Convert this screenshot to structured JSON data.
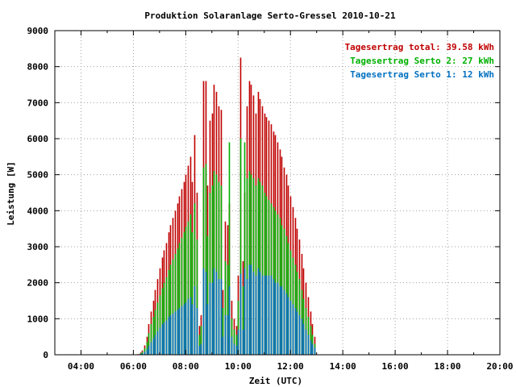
{
  "chart_data": {
    "type": "bar",
    "title": "Produktion Solaranlage Serto-Gressel 2010-10-21",
    "xlabel": "Zeit (UTC)",
    "ylabel": "Leistung [W]",
    "xlim": [
      3,
      20
    ],
    "ylim": [
      0,
      9000
    ],
    "x_ticks": [
      {
        "value": 4,
        "label": "04:00"
      },
      {
        "value": 6,
        "label": "06:00"
      },
      {
        "value": 8,
        "label": "08:00"
      },
      {
        "value": 10,
        "label": "10:00"
      },
      {
        "value": 12,
        "label": "12:00"
      },
      {
        "value": 14,
        "label": "14:00"
      },
      {
        "value": 16,
        "label": "16:00"
      },
      {
        "value": 18,
        "label": "18:00"
      },
      {
        "value": 20,
        "label": "20:00"
      }
    ],
    "y_ticks": [
      {
        "value": 0,
        "label": "0"
      },
      {
        "value": 1000,
        "label": "1000"
      },
      {
        "value": 2000,
        "label": "2000"
      },
      {
        "value": 3000,
        "label": "3000"
      },
      {
        "value": 4000,
        "label": "4000"
      },
      {
        "value": 5000,
        "label": "5000"
      },
      {
        "value": 6000,
        "label": "6000"
      },
      {
        "value": 7000,
        "label": "7000"
      },
      {
        "value": 8000,
        "label": "8000"
      },
      {
        "value": 9000,
        "label": "9000"
      }
    ],
    "grid": true,
    "legend_position": "top-right",
    "sample_interval_hours": 0.0833,
    "start_time_hours": 6.1667,
    "series": [
      {
        "name": "Tagesertrag total",
        "legend": "Tagesertrag total: 39.58 kWh",
        "color": "#c00000",
        "values": [
          20,
          60,
          120,
          260,
          500,
          850,
          1200,
          1500,
          1800,
          2100,
          2400,
          2700,
          2900,
          3100,
          3400,
          3600,
          3800,
          4000,
          4200,
          4400,
          4600,
          4800,
          5000,
          5250,
          5500,
          4800,
          6100,
          4500,
          800,
          1100,
          7600,
          7600,
          4700,
          6500,
          6700,
          7500,
          7300,
          6900,
          6800,
          1800,
          3700,
          3600,
          4200,
          1500,
          1000,
          800,
          2200,
          8250,
          2600,
          4500,
          6900,
          7600,
          7500,
          7200,
          6700,
          7300,
          7100,
          6900,
          6700,
          6600,
          6500,
          6400,
          6200,
          6100,
          5900,
          5700,
          5500,
          5200,
          5000,
          4700,
          4400,
          4100,
          3800,
          3500,
          3200,
          2800,
          2400,
          2000,
          1600,
          1200,
          850,
          500
        ]
      },
      {
        "name": "Tagesertrag Serto 2",
        "legend": "Tagesertrag Serto 2: 27 kWh",
        "color": "#00b000",
        "values": [
          10,
          40,
          80,
          180,
          350,
          600,
          850,
          1050,
          1250,
          1450,
          1650,
          1850,
          2000,
          2150,
          2350,
          2500,
          2650,
          2800,
          2950,
          3100,
          3250,
          3400,
          3550,
          3700,
          3900,
          3400,
          4200,
          3200,
          550,
          800,
          5200,
          5300,
          3300,
          4500,
          4700,
          5100,
          5000,
          4800,
          4700,
          1300,
          2600,
          2500,
          5900,
          1000,
          700,
          550,
          1500,
          6000,
          1900,
          5900,
          4900,
          5100,
          5000,
          4900,
          4700,
          4900,
          4800,
          4700,
          4500,
          4400,
          4300,
          4200,
          4100,
          4000,
          3900,
          3800,
          3600,
          3500,
          3300,
          3100,
          2900,
          2700,
          2500,
          2300,
          2100,
          1800,
          1550,
          1300,
          1050,
          800,
          550,
          300
        ]
      },
      {
        "name": "Tagesertrag Serto 1",
        "legend": "Tagesertrag Serto 1: 12 kWh",
        "color": "#0070c0",
        "values": [
          5,
          20,
          40,
          80,
          150,
          250,
          350,
          450,
          550,
          650,
          750,
          850,
          900,
          950,
          1050,
          1100,
          1150,
          1200,
          1250,
          1300,
          1350,
          1400,
          1450,
          1550,
          1600,
          1400,
          1900,
          1300,
          250,
          300,
          2400,
          2300,
          1400,
          2000,
          2000,
          2400,
          2300,
          2100,
          2100,
          500,
          1100,
          1100,
          1900,
          500,
          300,
          250,
          700,
          2250,
          700,
          2400,
          2100,
          2500,
          2500,
          2300,
          2200,
          2400,
          2300,
          2200,
          2200,
          2200,
          2200,
          2200,
          2100,
          2000,
          2000,
          1900,
          1900,
          1800,
          1700,
          1600,
          1500,
          1400,
          1300,
          1200,
          1100,
          1000,
          850,
          700,
          550,
          400,
          300,
          200
        ]
      }
    ]
  }
}
